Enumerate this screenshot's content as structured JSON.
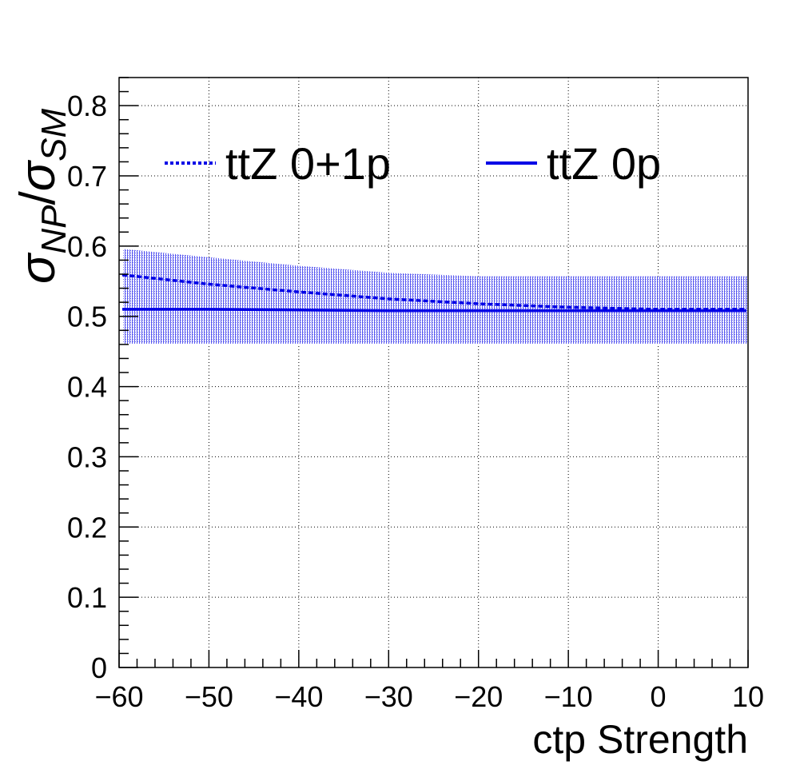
{
  "chart_data": {
    "type": "line",
    "title": "",
    "xlabel": "ctp Strength",
    "ylabel": {
      "main": "σ",
      "sub1": "NP",
      "slash": "/",
      "main2": "σ",
      "sub2": "SM"
    },
    "xlim": [
      -60,
      10
    ],
    "ylim": [
      0,
      0.84
    ],
    "x_ticks": [
      -60,
      -50,
      -40,
      -30,
      -20,
      -10,
      0,
      10
    ],
    "x_tick_labels": [
      "−60",
      "−50",
      "−40",
      "−30",
      "−20",
      "−10",
      "0",
      "10"
    ],
    "y_ticks": [
      0,
      0.1,
      0.2,
      0.3,
      0.4,
      0.5,
      0.6,
      0.7,
      0.8
    ],
    "y_tick_labels": [
      "0",
      "0.1",
      "0.2",
      "0.3",
      "0.4",
      "0.5",
      "0.6",
      "0.7",
      "0.8"
    ],
    "grid": true,
    "legend_position": "top",
    "color": "#0000e6",
    "series": [
      {
        "name": "ttZ 0+1p",
        "style": "dashed",
        "x": [
          -60,
          -50,
          -40,
          -30,
          -20,
          -10,
          0,
          10
        ],
        "y": [
          0.559,
          0.546,
          0.535,
          0.525,
          0.518,
          0.513,
          0.51,
          0.51
        ]
      },
      {
        "name": "ttZ 0p",
        "style": "solid",
        "x": [
          -60,
          -50,
          -40,
          -30,
          -20,
          -10,
          0,
          10
        ],
        "y": [
          0.51,
          0.51,
          0.509,
          0.508,
          0.508,
          0.508,
          0.508,
          0.508
        ]
      }
    ],
    "band": {
      "x": [
        -60,
        -50,
        -40,
        -30,
        -20,
        -10,
        0,
        10
      ],
      "upper": [
        0.596,
        0.584,
        0.572,
        0.562,
        0.557,
        0.557,
        0.557,
        0.557
      ],
      "lower": [
        0.461,
        0.461,
        0.461,
        0.461,
        0.461,
        0.461,
        0.461,
        0.461
      ]
    }
  }
}
